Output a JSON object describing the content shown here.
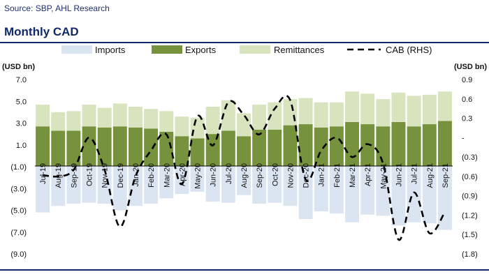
{
  "source": "Source: SBP, AHL Research",
  "title": "Monthly CAD",
  "chart_data": {
    "type": "bar",
    "stacked": true,
    "title": "Monthly CAD",
    "categories": [
      "Jul-19",
      "Aug-19",
      "Sep-19",
      "Oct-19",
      "Nov-19",
      "Dec-19",
      "Jan-20",
      "Feb-20",
      "Mar-20",
      "Apr-20",
      "May-20",
      "Jun-20",
      "Jul-20",
      "Aug-20",
      "Sep-20",
      "Oct-20",
      "Nov-20",
      "Dec-20",
      "Jan-21",
      "Feb-21",
      "Mar-21",
      "Apr-21",
      "May-21",
      "Jun-21",
      "Jul-21",
      "Aug-21",
      "Sep-21"
    ],
    "series": [
      {
        "name": "Imports",
        "axis": "left",
        "color": "#dbe5f1",
        "values": [
          -5.2,
          -4.6,
          -4.4,
          -4.3,
          -4.4,
          -5.0,
          -4.6,
          -4.4,
          -3.9,
          -3.5,
          -3.3,
          -4.2,
          -4.3,
          -3.6,
          -4.4,
          -4.3,
          -4.6,
          -5.8,
          -5.1,
          -5.3,
          -6.1,
          -5.4,
          -5.5,
          -6.4,
          -6.1,
          -6.2,
          -6.8
        ]
      },
      {
        "name": "Exports",
        "axis": "left",
        "color": "#76923c",
        "values": [
          2.7,
          2.3,
          2.3,
          2.7,
          2.6,
          2.7,
          2.6,
          2.5,
          2.2,
          1.8,
          1.6,
          2.0,
          2.3,
          1.8,
          2.4,
          2.4,
          2.8,
          2.9,
          2.6,
          2.7,
          3.1,
          2.9,
          2.7,
          3.1,
          2.7,
          2.9,
          3.2
        ]
      },
      {
        "name": "Remittances",
        "axis": "left",
        "color": "#d7e4bd",
        "values": [
          2.0,
          1.7,
          1.8,
          2.0,
          1.8,
          2.1,
          1.9,
          1.8,
          1.9,
          1.8,
          1.9,
          2.5,
          2.8,
          2.1,
          2.3,
          2.5,
          2.4,
          2.4,
          2.3,
          2.2,
          2.8,
          2.8,
          2.5,
          2.7,
          2.8,
          2.7,
          2.7
        ]
      },
      {
        "name": "CAB (RHS)",
        "axis": "right",
        "type": "line",
        "style": "dashed",
        "color": "#000000",
        "values": [
          -0.58,
          -0.6,
          -0.5,
          0.0,
          -0.5,
          -1.38,
          -0.6,
          -0.2,
          0.05,
          -0.72,
          0.33,
          -0.12,
          0.55,
          0.35,
          0.05,
          0.45,
          0.58,
          -0.65,
          -0.2,
          0.0,
          -0.3,
          -0.1,
          -0.4,
          -1.58,
          -0.85,
          -1.48,
          -1.15
        ]
      }
    ],
    "left_axis": {
      "label": "(USD bn)",
      "ylim": [
        -9.0,
        7.0
      ],
      "ticks": [
        "7.0",
        "5.0",
        "3.0",
        "1.0",
        "(1.0)",
        "(3.0)",
        "(5.0)",
        "(7.0)",
        "(9.0)"
      ]
    },
    "right_axis": {
      "label": "(USD bn)",
      "ylim": [
        -1.8,
        0.9
      ],
      "ticks": [
        "0.9",
        "0.6",
        "0.3",
        "-",
        "(0.3)",
        "(0.6)",
        "(0.9)",
        "(1.2)",
        "(1.5)",
        "(1.8)"
      ]
    },
    "legend": {
      "position": "top",
      "entries": [
        "Imports",
        "Exports",
        "Remittances",
        "CAB (RHS)"
      ]
    },
    "grid": false
  }
}
